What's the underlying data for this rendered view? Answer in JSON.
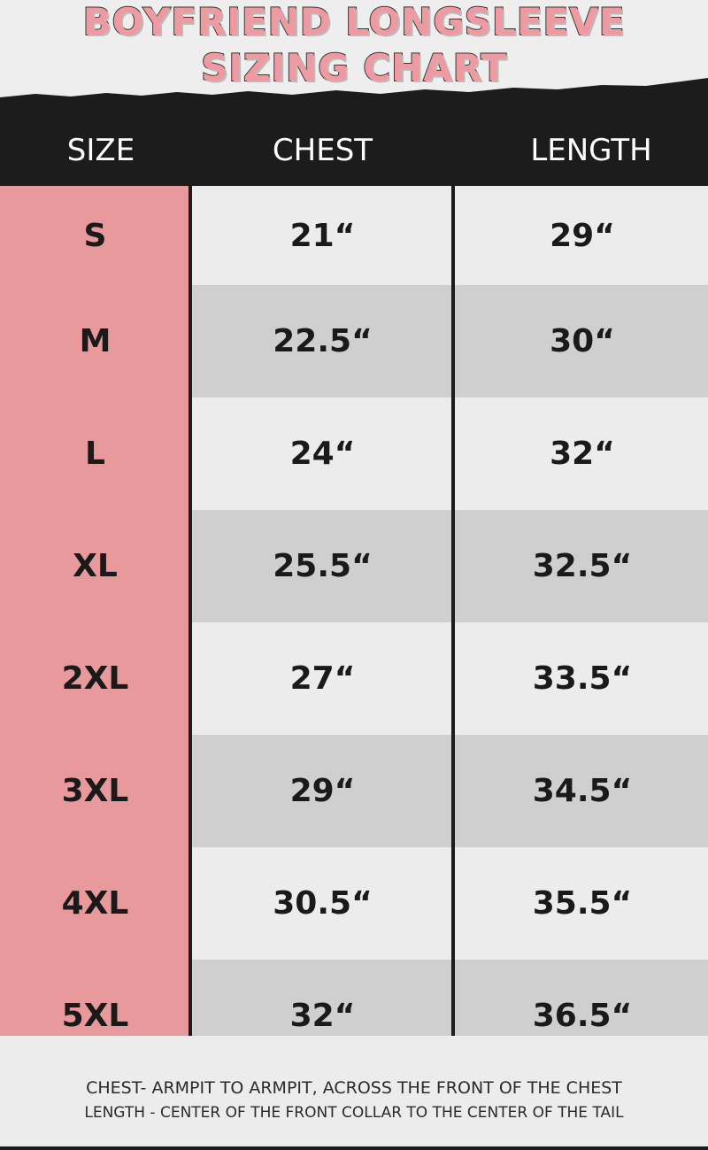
{
  "title": {
    "line1": "BOYFRIEND LONGSLEEVE",
    "line2": "SIZING CHART"
  },
  "columns": [
    "SIZE",
    "CHEST",
    "LENGTH"
  ],
  "rows": [
    {
      "size": "S",
      "chest": "21“",
      "length": "29“"
    },
    {
      "size": "M",
      "chest": "22.5“",
      "length": "30“"
    },
    {
      "size": "L",
      "chest": "24“",
      "length": "32“"
    },
    {
      "size": "XL",
      "chest": "25.5“",
      "length": "32.5“"
    },
    {
      "size": "2XL",
      "chest": "27“",
      "length": "33.5“"
    },
    {
      "size": "3XL",
      "chest": "29“",
      "length": "34.5“"
    },
    {
      "size": "4XL",
      "chest": "30.5“",
      "length": "35.5“"
    },
    {
      "size": "5XL",
      "chest": "32“",
      "length": "36.5“"
    }
  ],
  "notes": {
    "chest": "CHEST- ARMPIT TO ARMPIT, ACROSS THE FRONT OF THE CHEST",
    "length": "LENGTH - CENTER OF THE FRONT COLLAR TO THE CENTER OF THE TAIL"
  },
  "colors": {
    "accent_pink": "#e8999b",
    "header_black": "#1c1c1c",
    "row_light": "#ececec",
    "row_gray": "#cfcfcf"
  }
}
